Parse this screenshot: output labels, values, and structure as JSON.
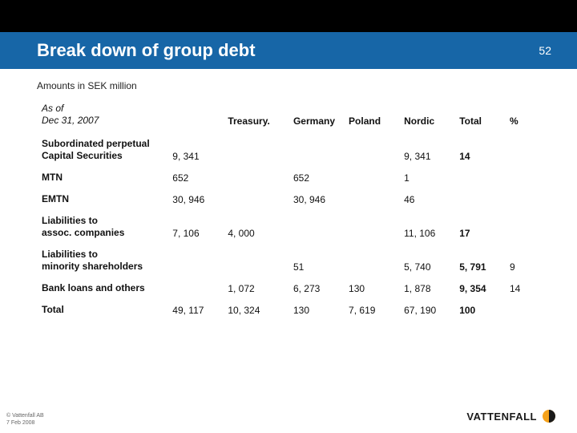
{
  "header": {
    "title": "Break down of group debt",
    "page_number": "52",
    "bar_bg": "#1766a7",
    "bar_fg": "#ffffff"
  },
  "subtitle": "Amounts in SEK million",
  "table": {
    "asof_line1": "As of",
    "asof_line2": "Dec 31, 2007",
    "columns": [
      "Treasury.",
      "Germany",
      "Poland",
      "Nordic",
      "Total",
      "%"
    ],
    "rows": [
      {
        "label": "Subordinated perpetual\nCapital Securities",
        "treasury": "9, 341",
        "germany": "",
        "poland": "",
        "nordic": "",
        "total": "9, 341",
        "pct": "14",
        "bold_label": true
      },
      {
        "label": "MTN",
        "treasury": "652",
        "germany": "",
        "poland": "652",
        "nordic": "",
        "total": "1",
        "pct": "",
        "bold_label": true
      },
      {
        "label": "EMTN",
        "treasury": "30, 946",
        "germany": "",
        "poland": "30, 946",
        "nordic": "",
        "total": "46",
        "pct": "",
        "bold_label": true
      },
      {
        "label": "Liabilities to\nassoc. companies",
        "treasury": "7, 106",
        "germany": "4, 000",
        "poland": "",
        "nordic": "",
        "total": "11, 106",
        "pct": "17",
        "bold_label": true
      },
      {
        "label": "Liabilities to\nminority shareholders",
        "treasury": "",
        "germany": "",
        "poland": "51",
        "nordic": "",
        "total": "5, 740",
        "pct": "5, 791",
        "extra": "9",
        "bold_label": true
      },
      {
        "label": "Bank loans and others",
        "treasury": "",
        "germany": "1, 072",
        "poland": "6, 273",
        "nordic": "130",
        "total": "1, 878",
        "pct": "9, 354",
        "extra": "14",
        "bold_label": true
      },
      {
        "label": "Total",
        "treasury": "49, 117",
        "germany": "10, 324",
        "poland": "130",
        "nordic": "7, 619",
        "total": "67, 190",
        "pct": "100",
        "bold_label": true
      }
    ]
  },
  "footer": {
    "copyright_l1": "© Vattenfall AB",
    "copyright_l2": "7 Feb 2008",
    "brand": "VATTENFALL",
    "brand_color": "#1a1a1a",
    "icon_color": "#f5a21b"
  }
}
